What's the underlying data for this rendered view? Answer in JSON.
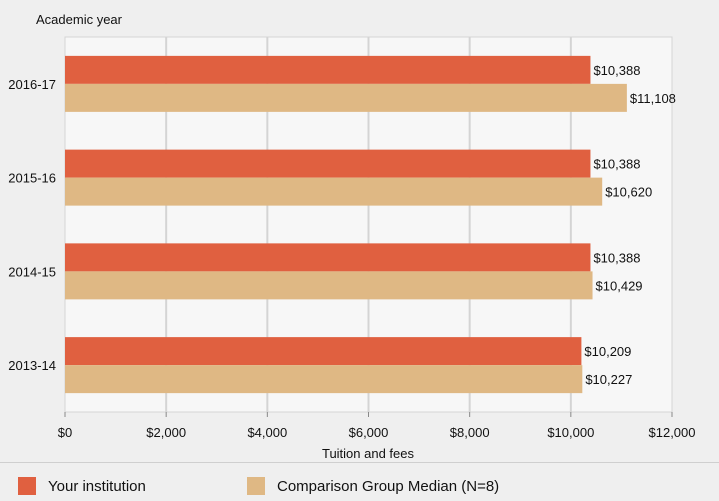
{
  "chart_data": {
    "type": "bar",
    "orientation": "horizontal",
    "categories": [
      "2016-17",
      "2015-16",
      "2014-15",
      "2013-14"
    ],
    "series": [
      {
        "name": "Your institution",
        "color": "#e06040",
        "values": [
          10388,
          10388,
          10388,
          10209
        ],
        "labels": [
          "$10,388",
          "$10,388",
          "$10,388",
          "$10,209"
        ]
      },
      {
        "name": "Comparison Group Median (N=8)",
        "color": "#dfb884",
        "values": [
          11108,
          10620,
          10429,
          10227
        ],
        "labels": [
          "$11,108",
          "$10,620",
          "$10,429",
          "$10,227"
        ]
      }
    ],
    "xlim": [
      0,
      12000
    ],
    "x_ticks": [
      0,
      2000,
      4000,
      6000,
      8000,
      10000,
      12000
    ],
    "x_tick_labels": [
      "$0",
      "$2,000",
      "$4,000",
      "$6,000",
      "$8,000",
      "$10,000",
      "$12,000"
    ],
    "xlabel": "Tuition and fees",
    "ylabel": "Academic year",
    "grid": "vertical",
    "legend_position": "bottom"
  },
  "legend": {
    "institution_label": "Your institution",
    "comparison_label": "Comparison Group Median (N=8)"
  }
}
